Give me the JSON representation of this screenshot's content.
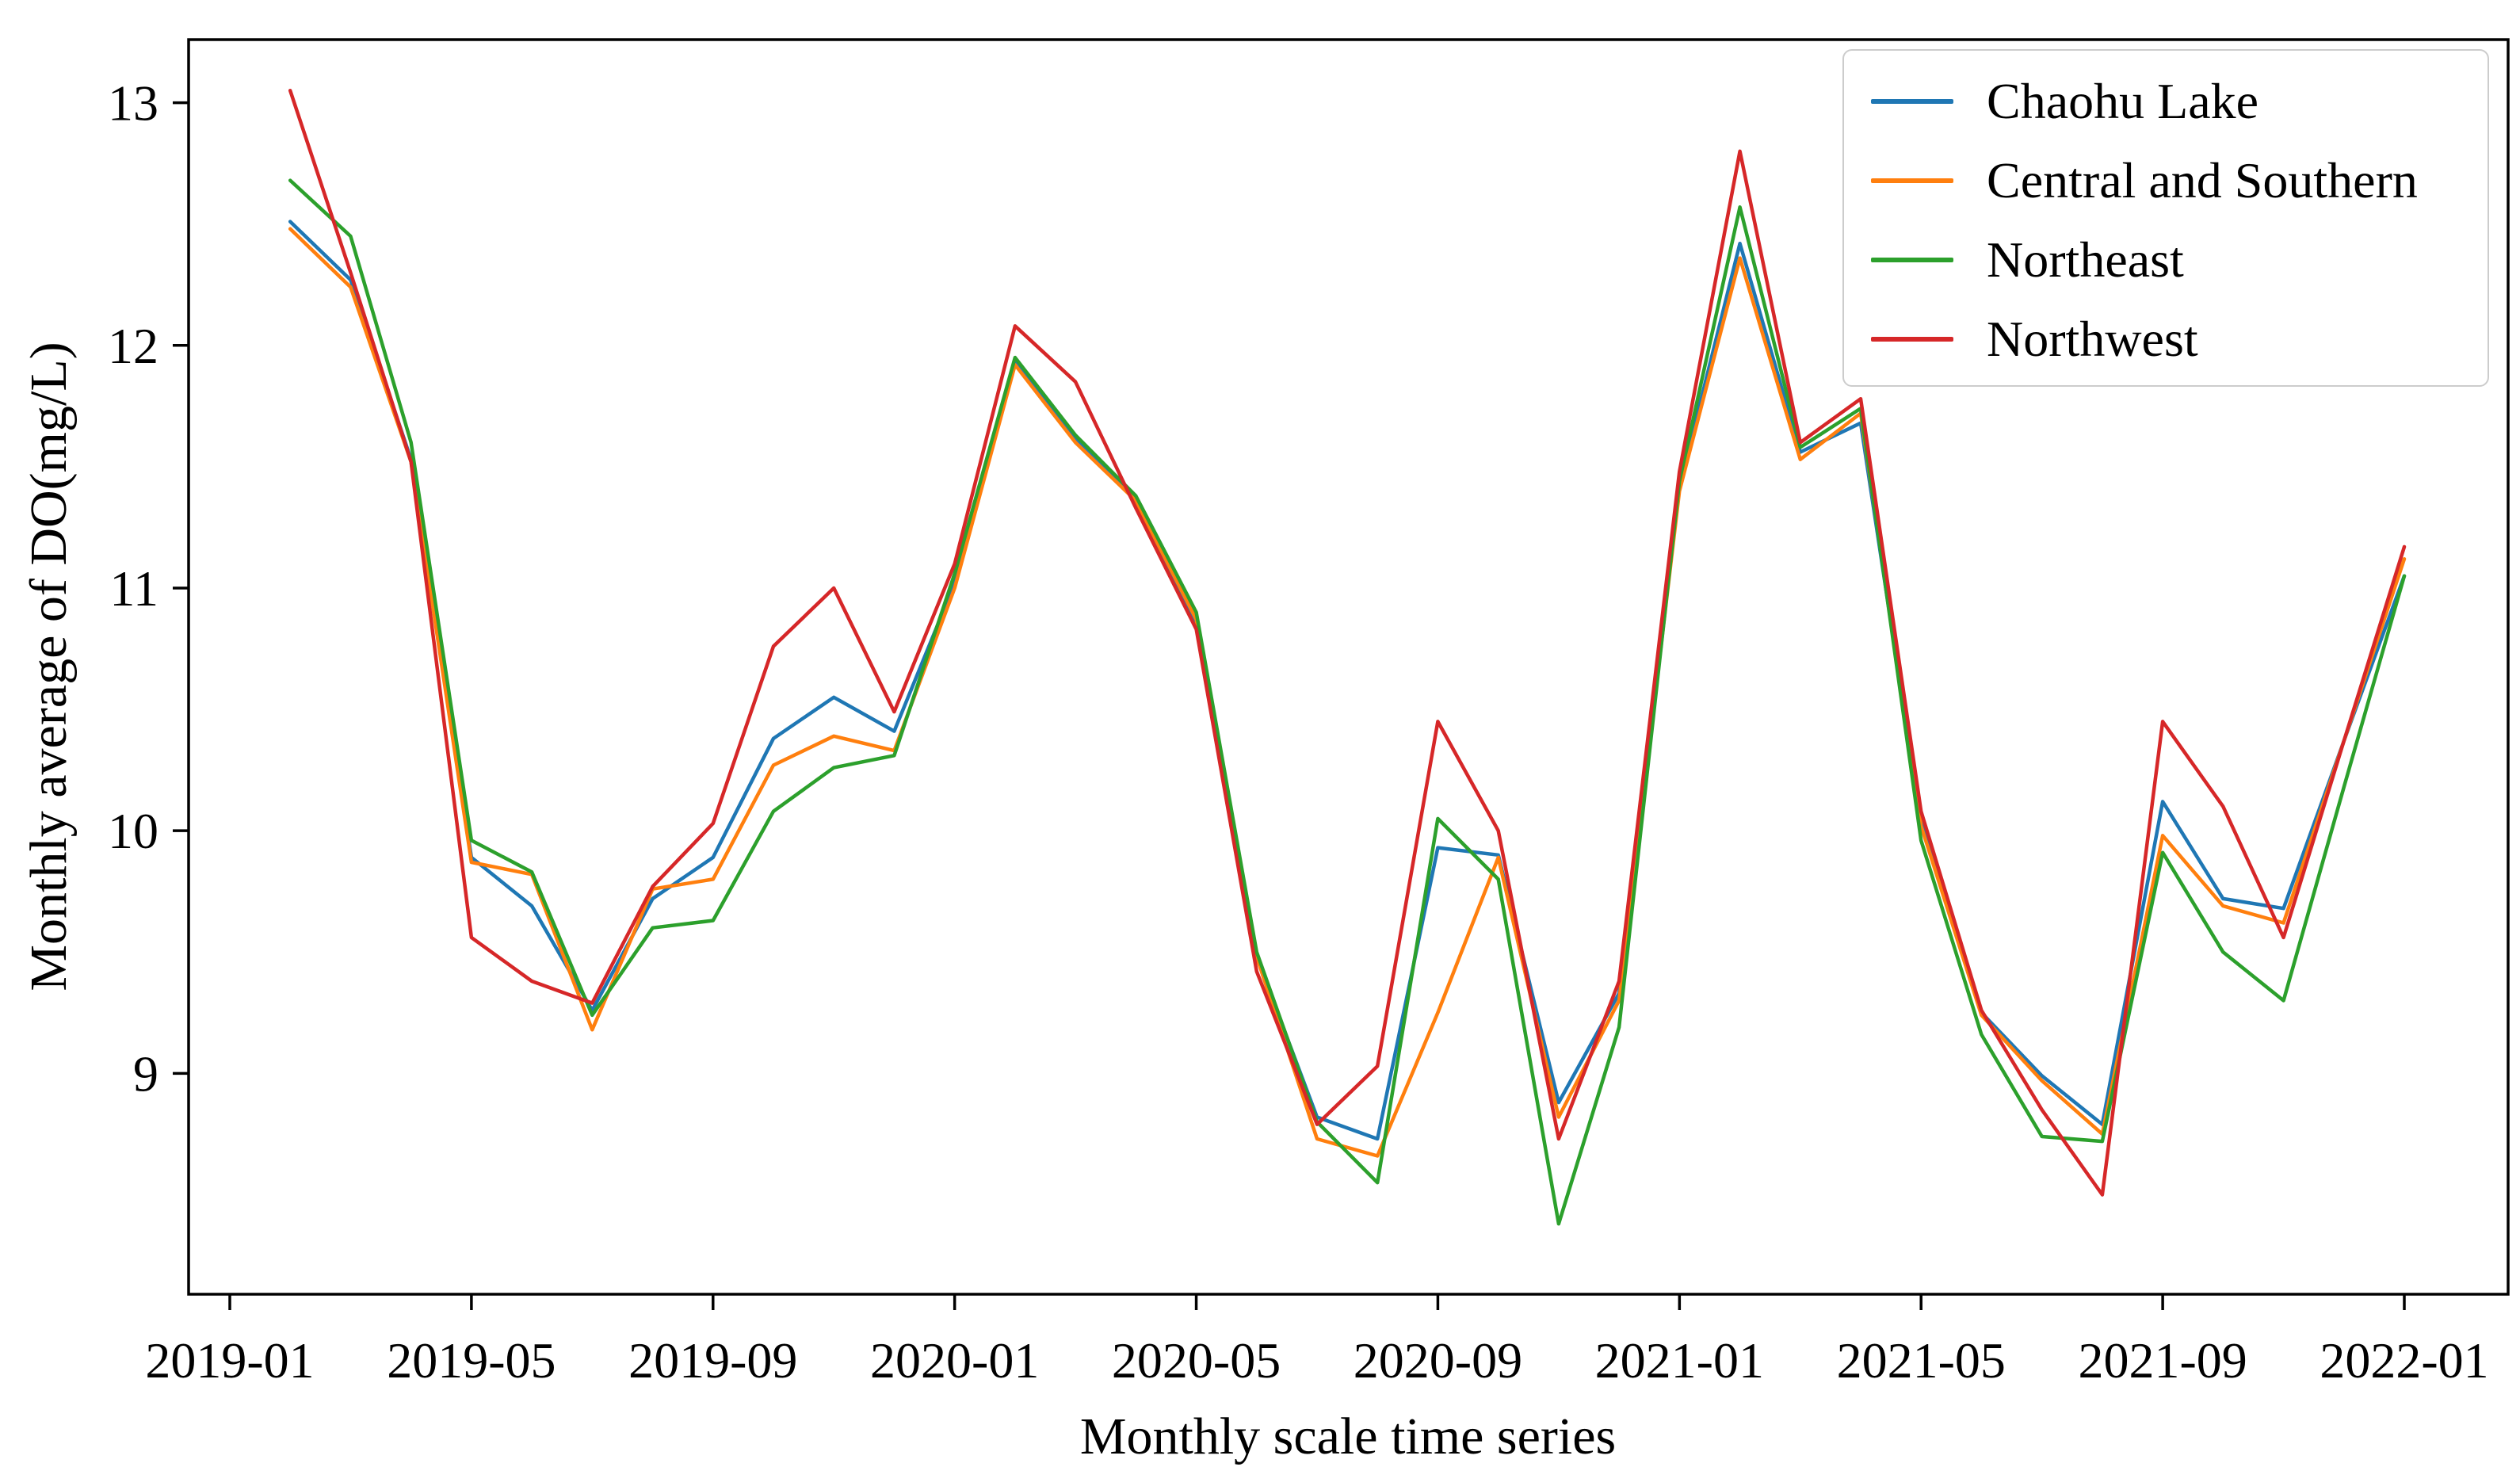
{
  "chart_data": {
    "type": "line",
    "title": "",
    "xlabel": "Monthly scale time series",
    "ylabel": "Monthly average of DO(mg/L)",
    "categories": [
      "2019-02",
      "2019-03",
      "2019-04",
      "2019-05",
      "2019-06",
      "2019-07",
      "2019-08",
      "2019-09",
      "2019-10",
      "2019-11",
      "2019-12",
      "2020-01",
      "2020-02",
      "2020-03",
      "2020-04",
      "2020-05",
      "2020-06",
      "2020-07",
      "2020-08",
      "2020-09",
      "2020-10",
      "2020-11",
      "2020-12",
      "2021-01",
      "2021-02",
      "2021-03",
      "2021-04",
      "2021-05",
      "2021-06",
      "2021-07",
      "2021-08",
      "2021-09",
      "2021-10",
      "2021-11",
      "2021-12",
      "2022-01"
    ],
    "x_start_slot": 1,
    "xtick_labels": [
      "2019-01",
      "2019-05",
      "2019-09",
      "2020-01",
      "2020-05",
      "2020-09",
      "2021-01",
      "2021-05",
      "2021-09",
      "2022-01"
    ],
    "xtick_slots": [
      0,
      4,
      8,
      12,
      16,
      20,
      24,
      28,
      32,
      36
    ],
    "yticks": [
      9,
      10,
      11,
      12,
      13
    ],
    "ylim": [
      8.09,
      13.26
    ],
    "grid": false,
    "legend_position": "upper right",
    "axis_color": "#000000",
    "series": [
      {
        "name": "Chaohu Lake",
        "color": "#1f77b4",
        "values": [
          12.51,
          12.27,
          11.53,
          9.89,
          9.69,
          9.26,
          9.72,
          9.89,
          10.38,
          10.55,
          10.41,
          11.02,
          11.93,
          11.62,
          11.36,
          10.85,
          9.48,
          8.82,
          8.73,
          9.93,
          9.9,
          8.88,
          9.33,
          11.42,
          12.42,
          11.56,
          11.68,
          10.04,
          9.25,
          8.99,
          8.79,
          10.12,
          9.72,
          9.68,
          10.37,
          11.05
        ]
      },
      {
        "name": "Central and Southern",
        "color": "#ff7f0e",
        "values": [
          12.48,
          12.24,
          11.52,
          9.87,
          9.82,
          9.18,
          9.76,
          9.8,
          10.27,
          10.39,
          10.33,
          11.0,
          11.92,
          11.6,
          11.36,
          10.87,
          9.48,
          8.73,
          8.66,
          9.25,
          9.89,
          8.82,
          9.3,
          11.4,
          12.36,
          11.53,
          11.72,
          10.02,
          9.24,
          8.97,
          8.75,
          9.98,
          9.69,
          9.62,
          10.37,
          11.12
        ]
      },
      {
        "name": "Northeast",
        "color": "#2ca02c",
        "values": [
          12.68,
          12.45,
          11.6,
          9.96,
          9.83,
          9.24,
          9.6,
          9.63,
          10.08,
          10.26,
          10.31,
          11.06,
          11.95,
          11.63,
          11.38,
          10.9,
          9.5,
          8.8,
          8.55,
          10.05,
          9.8,
          8.38,
          9.19,
          11.44,
          12.57,
          11.58,
          11.74,
          9.96,
          9.16,
          8.74,
          8.72,
          9.91,
          9.5,
          9.3,
          10.18,
          11.05
        ]
      },
      {
        "name": "Northwest",
        "color": "#d62728",
        "values": [
          13.05,
          12.3,
          11.52,
          9.56,
          9.38,
          9.29,
          9.77,
          10.03,
          10.76,
          11.0,
          10.49,
          11.1,
          12.08,
          11.85,
          11.33,
          10.83,
          9.42,
          8.79,
          9.03,
          10.45,
          10.0,
          8.73,
          9.38,
          11.48,
          12.8,
          11.6,
          11.78,
          10.08,
          9.26,
          8.85,
          8.5,
          10.45,
          10.1,
          9.56,
          10.37,
          11.17
        ]
      }
    ]
  }
}
